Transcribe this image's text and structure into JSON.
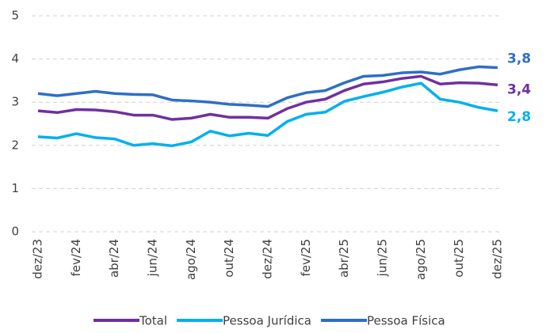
{
  "chart_data": {
    "type": "line",
    "categories": [
      "dez/23",
      null,
      "fev/24",
      null,
      "abr/24",
      null,
      "jun/24",
      null,
      "ago/24",
      null,
      "out/24",
      null,
      "dez/24",
      null,
      "fev/25",
      null,
      "abr/25",
      null,
      "jun/25",
      null,
      "ago/25",
      null,
      "out/25",
      null,
      "dez/25"
    ],
    "series": [
      {
        "name": "Total",
        "color": "#7030a0",
        "values": [
          2.8,
          2.76,
          2.83,
          2.82,
          2.78,
          2.7,
          2.7,
          2.6,
          2.63,
          2.72,
          2.65,
          2.65,
          2.63,
          2.85,
          3.0,
          3.07,
          3.27,
          3.42,
          3.47,
          3.55,
          3.6,
          3.42,
          3.45,
          3.44,
          3.4
        ],
        "value_labels": [
          null,
          null,
          null,
          null,
          null,
          null,
          null,
          null,
          null,
          null,
          null,
          null,
          null,
          null,
          null,
          null,
          null,
          null,
          null,
          null,
          null,
          null,
          null,
          null,
          "3,4"
        ]
      },
      {
        "name": "Pessoa Jurídica",
        "color": "#00b0f0",
        "values": [
          2.2,
          2.17,
          2.27,
          2.18,
          2.15,
          2.0,
          2.04,
          1.99,
          2.08,
          2.33,
          2.22,
          2.28,
          2.23,
          2.55,
          2.72,
          2.77,
          3.02,
          3.13,
          3.23,
          3.35,
          3.44,
          3.07,
          3.0,
          2.88,
          2.8
        ],
        "value_labels": [
          null,
          null,
          null,
          null,
          null,
          null,
          null,
          null,
          null,
          null,
          null,
          null,
          null,
          null,
          null,
          null,
          null,
          null,
          null,
          null,
          null,
          null,
          null,
          null,
          "2,8"
        ]
      },
      {
        "name": "Pessoa Física",
        "color": "#2e6fc7",
        "values": [
          3.2,
          3.15,
          3.2,
          3.25,
          3.2,
          3.18,
          3.17,
          3.05,
          3.03,
          3.0,
          2.95,
          2.93,
          2.9,
          3.1,
          3.22,
          3.27,
          3.45,
          3.6,
          3.62,
          3.68,
          3.7,
          3.65,
          3.75,
          3.82,
          3.8
        ],
        "value_labels": [
          null,
          null,
          null,
          null,
          null,
          null,
          null,
          null,
          null,
          null,
          null,
          null,
          null,
          null,
          null,
          null,
          null,
          null,
          null,
          null,
          null,
          null,
          null,
          null,
          "3,8"
        ]
      }
    ],
    "ylim": [
      0,
      5
    ],
    "yticks": [
      0,
      1,
      2,
      3,
      4,
      5
    ],
    "grid": true,
    "legend": "bottom"
  }
}
